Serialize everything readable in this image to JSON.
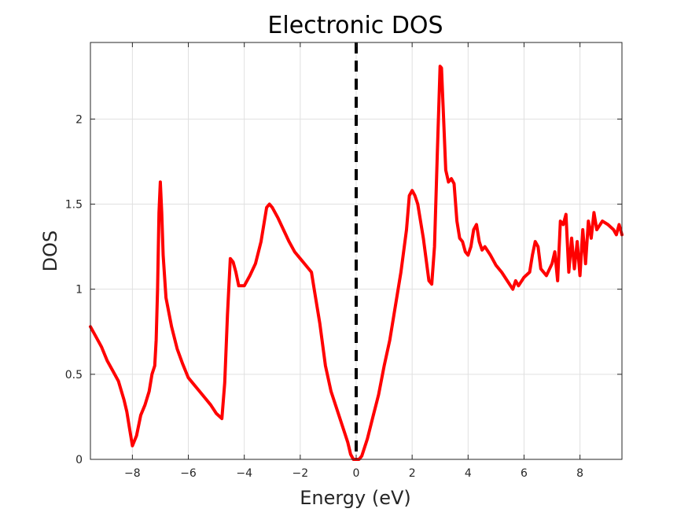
{
  "chart_data": {
    "type": "line",
    "title": "Electronic DOS",
    "xlabel": "Energy (eV)",
    "ylabel": "DOS",
    "xlim": [
      -9.5,
      9.5
    ],
    "ylim": [
      0,
      2.45
    ],
    "xticks": [
      -8,
      -6,
      -4,
      -2,
      0,
      2,
      4,
      6,
      8
    ],
    "xtick_labels": [
      "−8",
      "−6",
      "−4",
      "−2",
      "0",
      "2",
      "4",
      "6",
      "8"
    ],
    "yticks": [
      0,
      0.5,
      1,
      1.5,
      2
    ],
    "ytick_labels": [
      "0",
      "0.5",
      "1",
      "1.5",
      "2"
    ],
    "grid": true,
    "fermi_level": 0,
    "colors": {
      "series": "#ff0000",
      "fermi": "#000000",
      "grid": "#e0e0e0",
      "axes": "#262626"
    },
    "series": [
      {
        "x": [
          -9.5,
          -9.3,
          -9.1,
          -8.9,
          -8.7,
          -8.5,
          -8.3,
          -8.2,
          -8.1,
          -8.0,
          -7.85,
          -7.7,
          -7.55,
          -7.4,
          -7.3,
          -7.2,
          -7.15,
          -7.1,
          -7.05,
          -7.0,
          -6.95,
          -6.9,
          -6.8,
          -6.6,
          -6.4,
          -6.2,
          -6.0,
          -5.8,
          -5.6,
          -5.4,
          -5.2,
          -5.0,
          -4.8,
          -4.7,
          -4.6,
          -4.5,
          -4.4,
          -4.3,
          -4.2,
          -4.0,
          -3.8,
          -3.6,
          -3.4,
          -3.2,
          -3.1,
          -3.0,
          -2.8,
          -2.6,
          -2.4,
          -2.2,
          -2.0,
          -1.8,
          -1.6,
          -1.5,
          -1.3,
          -1.1,
          -0.9,
          -0.7,
          -0.5,
          -0.3,
          -0.2,
          -0.1,
          0.0,
          0.1,
          0.2,
          0.4,
          0.6,
          0.8,
          1.0,
          1.2,
          1.4,
          1.6,
          1.8,
          1.9,
          2.0,
          2.1,
          2.2,
          2.4,
          2.6,
          2.7,
          2.8,
          2.9,
          3.0,
          3.05,
          3.1,
          3.2,
          3.3,
          3.4,
          3.5,
          3.6,
          3.7,
          3.8,
          3.9,
          4.0,
          4.1,
          4.2,
          4.3,
          4.4,
          4.5,
          4.6,
          4.8,
          5.0,
          5.2,
          5.4,
          5.6,
          5.7,
          5.8,
          6.0,
          6.2,
          6.3,
          6.4,
          6.5,
          6.6,
          6.8,
          7.0,
          7.1,
          7.2,
          7.3,
          7.4,
          7.5,
          7.6,
          7.7,
          7.8,
          7.9,
          8.0,
          8.1,
          8.2,
          8.3,
          8.4,
          8.5,
          8.6,
          8.8,
          9.0,
          9.2,
          9.3,
          9.4,
          9.5
        ],
        "y": [
          0.78,
          0.72,
          0.66,
          0.58,
          0.52,
          0.46,
          0.35,
          0.28,
          0.18,
          0.08,
          0.14,
          0.26,
          0.32,
          0.4,
          0.5,
          0.55,
          0.7,
          1.0,
          1.45,
          1.63,
          1.45,
          1.2,
          0.95,
          0.78,
          0.65,
          0.56,
          0.48,
          0.44,
          0.4,
          0.36,
          0.32,
          0.27,
          0.24,
          0.45,
          0.85,
          1.18,
          1.16,
          1.1,
          1.02,
          1.02,
          1.08,
          1.15,
          1.28,
          1.48,
          1.5,
          1.48,
          1.42,
          1.35,
          1.28,
          1.22,
          1.18,
          1.14,
          1.1,
          1.0,
          0.8,
          0.55,
          0.4,
          0.3,
          0.2,
          0.1,
          0.03,
          0.0,
          0.0,
          0.0,
          0.02,
          0.12,
          0.25,
          0.38,
          0.55,
          0.7,
          0.9,
          1.1,
          1.35,
          1.55,
          1.58,
          1.55,
          1.5,
          1.3,
          1.05,
          1.03,
          1.25,
          1.8,
          2.31,
          2.3,
          2.1,
          1.7,
          1.63,
          1.65,
          1.62,
          1.4,
          1.3,
          1.28,
          1.22,
          1.2,
          1.25,
          1.35,
          1.38,
          1.28,
          1.23,
          1.25,
          1.2,
          1.14,
          1.1,
          1.05,
          1.0,
          1.05,
          1.02,
          1.07,
          1.1,
          1.2,
          1.28,
          1.25,
          1.12,
          1.08,
          1.15,
          1.22,
          1.05,
          1.4,
          1.38,
          1.44,
          1.1,
          1.3,
          1.12,
          1.28,
          1.08,
          1.35,
          1.15,
          1.4,
          1.3,
          1.45,
          1.35,
          1.4,
          1.38,
          1.35,
          1.32,
          1.38,
          1.32
        ]
      }
    ]
  }
}
